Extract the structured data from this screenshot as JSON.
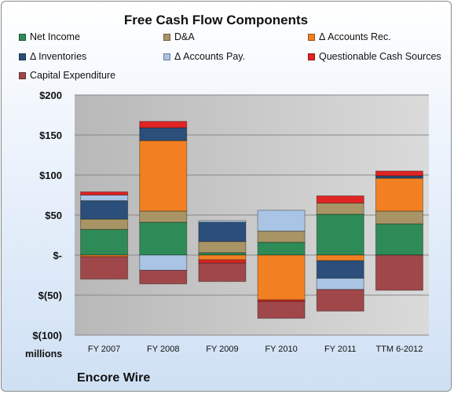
{
  "chart_data": {
    "type": "bar",
    "stacked": true,
    "title": "Free Cash Flow Components",
    "units_label": "millions",
    "company": "Encore Wire",
    "categories": [
      "FY 2007",
      "FY 2008",
      "FY 2009",
      "FY 2010",
      "FY 2011",
      "TTM 6-2012"
    ],
    "ylim": [
      -100,
      200
    ],
    "yticks": [
      -100,
      -50,
      0,
      50,
      100,
      150,
      200
    ],
    "ytick_labels": [
      "$(100)",
      "$(50)",
      "$-",
      "$50",
      "$100",
      "$150",
      "$200"
    ],
    "grid": true,
    "legend_position": "top",
    "series": [
      {
        "name": "Net Income",
        "color": "#2e8b57",
        "values": [
          32,
          41,
          3,
          16,
          51,
          39
        ]
      },
      {
        "name": "D&A",
        "color": "#a89464",
        "values": [
          13,
          14,
          14,
          14,
          14,
          16
        ]
      },
      {
        "name": "Δ Accounts Rec.",
        "color": "#f28022",
        "values": [
          -2,
          88,
          -6,
          -56,
          -7,
          41
        ]
      },
      {
        "name": "Δ Inventories",
        "color": "#2b4f7a",
        "values": [
          23,
          16,
          24,
          0,
          -22,
          3
        ]
      },
      {
        "name": "Δ Accounts Pay.",
        "color": "#a9c4e4",
        "values": [
          7,
          -19,
          2,
          26,
          -14,
          0
        ]
      },
      {
        "name": "Questionable Cash Sources",
        "color": "#e02424",
        "values": [
          4,
          8,
          -4,
          -2,
          9,
          6
        ]
      },
      {
        "name": "Capital Expenditure",
        "color": "#a0474a",
        "values": [
          -28,
          -17,
          -23,
          -21,
          -27,
          -44
        ]
      }
    ]
  }
}
